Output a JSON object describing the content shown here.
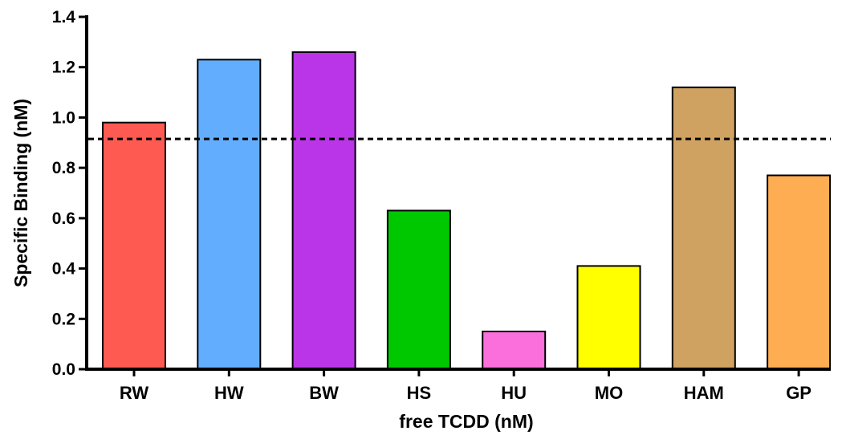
{
  "chart_data": {
    "type": "bar",
    "title": "",
    "xlabel": "free TCDD (nM)",
    "ylabel": "Specific Binding (nM)",
    "categories": [
      "RW",
      "HW",
      "BW",
      "HS",
      "HU",
      "MO",
      "HAM",
      "GP"
    ],
    "values": [
      0.98,
      1.23,
      1.26,
      0.63,
      0.15,
      0.41,
      1.12,
      0.77
    ],
    "colors": [
      "#ff5a52",
      "#63adff",
      "#bb35e8",
      "#00c800",
      "#fb6fdc",
      "#ffff00",
      "#cfa262",
      "#ffad52"
    ],
    "ylim": [
      0,
      1.4
    ],
    "yticks": [
      0.0,
      0.2,
      0.4,
      0.6,
      0.8,
      1.0,
      1.2,
      1.4
    ],
    "ytick_labels": [
      "0.0",
      "0.2",
      "0.4",
      "0.6",
      "0.8",
      "1.0",
      "1.2",
      "1.4"
    ],
    "reference_line": {
      "y": 0.915,
      "style": "dashed"
    },
    "grid": false,
    "legend": "none"
  }
}
